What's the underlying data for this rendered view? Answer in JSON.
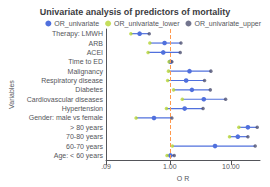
{
  "chart_data": {
    "type": "forest",
    "title": "Univariate analysis of predictors of mortality",
    "xlabel": "O R",
    "ylabel": "Variables",
    "categories": [
      "Therapy: LMWH",
      "ARB",
      "ACEI",
      "Time to ED",
      "Malignancy",
      "Respiratory disease",
      "Diabetes",
      "Cardiovascular diseases",
      "Hypertension",
      "Gender: male vs female",
      "> 80 years",
      "70-80 years",
      "60-70 years",
      "Age: < 60 years"
    ],
    "series": [
      {
        "name": "OR_univariate",
        "values": [
          0.32,
          0.82,
          0.78,
          1.02,
          2.1,
          1.85,
          2.3,
          3.6,
          1.75,
          0.55,
          19.0,
          13.0,
          5.5,
          1.02
        ]
      },
      {
        "name": "OR_univariate_lower",
        "values": [
          0.23,
          0.47,
          0.44,
          0.97,
          0.95,
          0.92,
          1.15,
          1.6,
          0.88,
          0.28,
          13.5,
          9.5,
          1.1,
          0.9
        ]
      },
      {
        "name": "OR_univariate_upper",
        "values": [
          0.46,
          1.52,
          1.48,
          1.08,
          4.7,
          3.7,
          4.6,
          8.2,
          3.5,
          1.08,
          27.0,
          19.0,
          25.0,
          1.18
        ]
      }
    ],
    "xlim": [
      0.09,
      30
    ],
    "xticks": [
      {
        "value": 0.09,
        "label": ".09"
      },
      {
        "value": 1.0,
        "label": "1.00"
      },
      {
        "value": 10.0,
        "label": "10.00"
      }
    ],
    "log": "x",
    "grid": false,
    "legend": "upper right",
    "ref_line": 1.0
  }
}
